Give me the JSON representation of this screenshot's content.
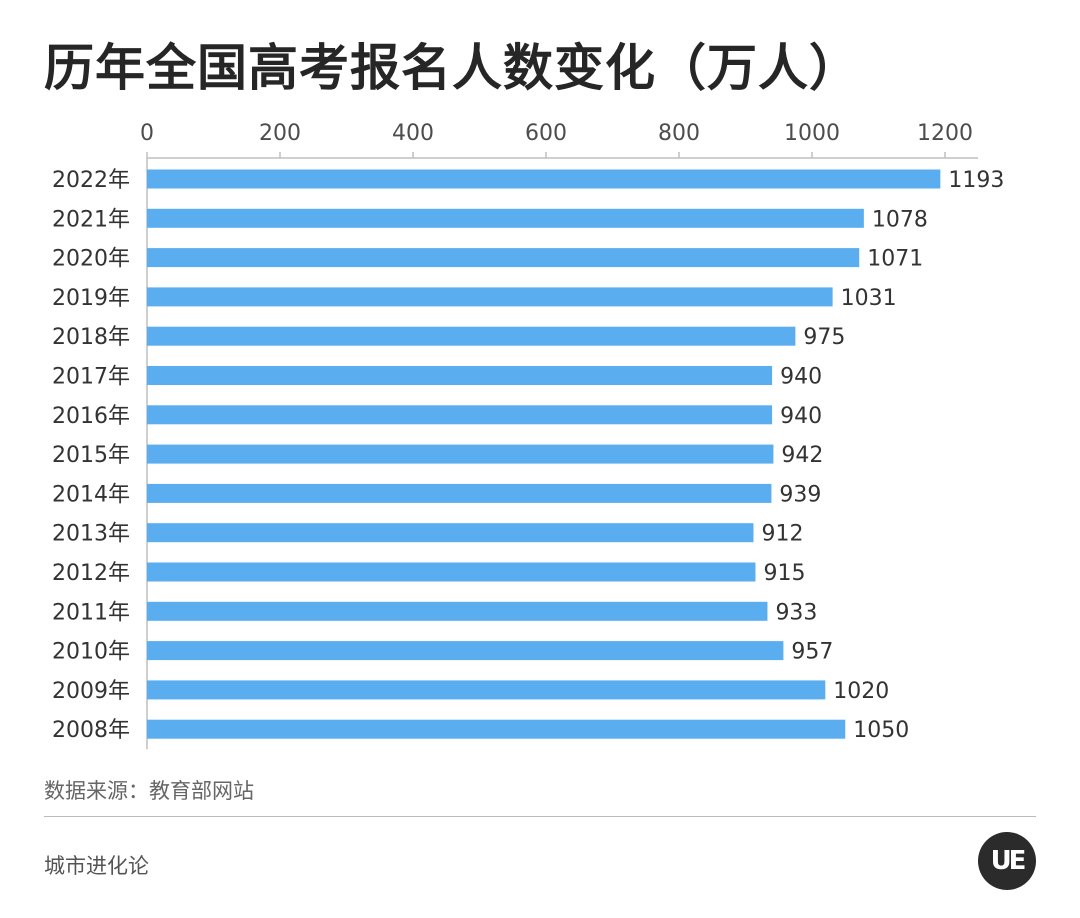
{
  "header": {
    "title": "历年全国高考报名人数变化（万人）"
  },
  "footer": {
    "source": "数据来源：教育部网站",
    "brand": "城市进化论",
    "logo_text": "UE"
  },
  "colors": {
    "bar": "#5aaef0",
    "axis": "#bfbfbf",
    "text": "#333333"
  },
  "chart_data": {
    "type": "bar",
    "orientation": "horizontal",
    "title": "历年全国高考报名人数变化（万人）",
    "categories": [
      "2022年",
      "2021年",
      "2020年",
      "2019年",
      "2018年",
      "2017年",
      "2016年",
      "2015年",
      "2014年",
      "2013年",
      "2012年",
      "2011年",
      "2010年",
      "2009年",
      "2008年"
    ],
    "values": [
      1193,
      1078,
      1071,
      1031,
      975,
      940,
      940,
      942,
      939,
      912,
      915,
      933,
      957,
      1020,
      1050
    ],
    "data_labels": [
      "1193",
      "1078",
      "1071",
      "1031",
      "975",
      "940",
      "940",
      "942",
      "939",
      "912",
      "915",
      "933",
      "957",
      "1020",
      "1050"
    ],
    "xticks": [
      "0",
      "200",
      "400",
      "600",
      "800",
      "1000",
      "1200"
    ],
    "xlim": [
      0,
      1200
    ],
    "xaxis_position": "top",
    "grid": false,
    "legend": "none"
  }
}
